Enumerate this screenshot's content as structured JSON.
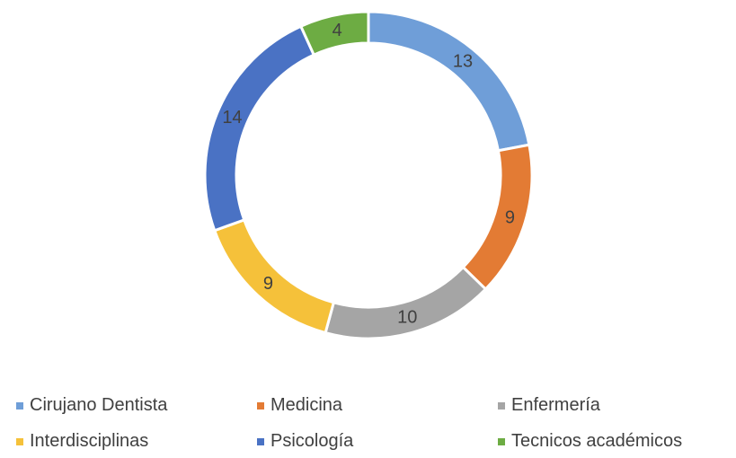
{
  "chart_data": {
    "type": "pie",
    "variant": "doughnut",
    "title": "",
    "categories": [
      "Cirujano Dentista",
      "Medicina",
      "Enfermería",
      "Interdisciplinas",
      "Psicología",
      "Tecnicos académicos"
    ],
    "values": [
      13,
      9,
      10,
      9,
      14,
      4
    ],
    "colors": [
      "#6f9ed8",
      "#e37b34",
      "#a5a5a5",
      "#f5c13a",
      "#4a72c4",
      "#6dac43"
    ],
    "legend_position": "bottom",
    "data_labels": true
  }
}
